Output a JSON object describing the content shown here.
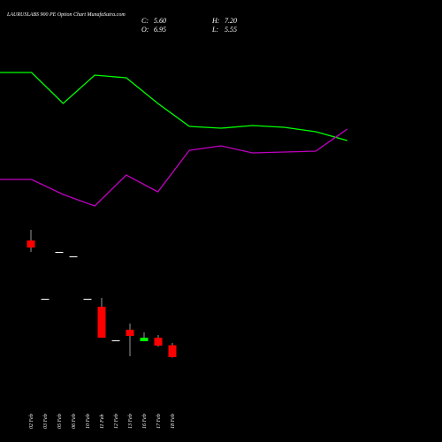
{
  "chart_data": [
    {
      "type": "candlestick",
      "title": "LAURUSLABS 900 PE Option Chart MunafaSutra.com",
      "ohlc_labels": [
        {
          "name": "C:",
          "value": 5.6,
          "label": "5.60"
        },
        {
          "name": "O:",
          "value": 6.95,
          "label": "6.95"
        },
        {
          "name": "H:",
          "value": 7.2,
          "label": "7.20"
        },
        {
          "name": "L:",
          "value": 5.55,
          "label": "5.55"
        }
      ],
      "categories": [
        "02 Feb",
        "03 Feb",
        "05 Feb",
        "06 Feb",
        "10 Feb",
        "11 Feb",
        "12 Feb",
        "13 Feb",
        "16 Feb",
        "17 Feb",
        "18 Feb"
      ],
      "open": [
        18.8,
        12.2,
        17.5,
        17.0,
        12.2,
        11.3,
        7.5,
        8.7,
        7.4,
        7.8,
        6.95
      ],
      "high": [
        20.0,
        12.2,
        17.5,
        17.0,
        12.2,
        12.3,
        7.5,
        9.4,
        8.4,
        8.1,
        7.2
      ],
      "low": [
        17.5,
        12.2,
        17.5,
        17.0,
        12.2,
        7.8,
        7.5,
        5.7,
        7.4,
        6.8,
        5.55
      ],
      "close": [
        18.0,
        12.2,
        17.5,
        17.0,
        12.2,
        7.8,
        7.5,
        8.0,
        7.8,
        6.9,
        5.6
      ],
      "up_color": "#00ff00",
      "down_color": "#ff0000",
      "flat_color": "#ffffff",
      "ylim": [
        4,
        21
      ]
    },
    {
      "type": "line",
      "x": [
        0,
        1,
        2,
        3,
        4,
        5,
        6,
        7,
        8,
        9,
        10,
        11
      ],
      "xlim": [
        0,
        14
      ],
      "ylim": [
        0,
        400
      ],
      "series": [
        {
          "color": "#00ff00",
          "values": [
            338,
            338,
            303,
            335,
            332,
            303,
            277,
            275,
            278,
            276,
            271,
            261
          ]
        },
        {
          "color": "#c000c0",
          "values": [
            217,
            217,
            200,
            187,
            222,
            203,
            250,
            255,
            247,
            248,
            249,
            274
          ]
        }
      ]
    }
  ]
}
